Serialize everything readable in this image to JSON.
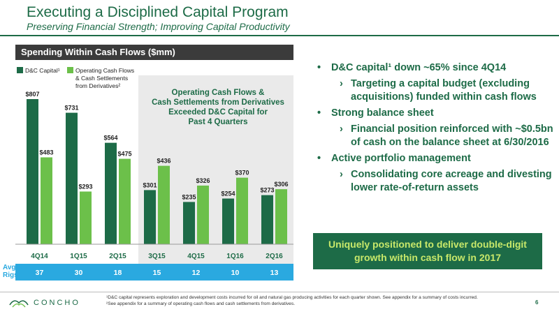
{
  "header": {
    "title": "Executing a Disciplined Capital Program",
    "subtitle": "Preserving Financial Strength; Improving Capital Productivity"
  },
  "panel": {
    "title": "Spending Within Cash Flows ($mm)",
    "legend": {
      "series1": "D&C Capital¹",
      "series2_line1": "Operating Cash Flows",
      "series2_line2": "& Cash Settlements",
      "series2_line3": "from Derivatives²"
    },
    "annotation": [
      "Operating Cash Flows &",
      "Cash Settlements from Derivatives",
      "Exceeded D&C Capital for",
      "Past 4 Quarters"
    ],
    "rigs_label_line1": "Avg. HZ",
    "rigs_label_line2": "Rigs",
    "rigs": [
      "37",
      "30",
      "18",
      "15",
      "12",
      "10",
      "13"
    ]
  },
  "chart_data": {
    "type": "bar",
    "title": "Spending Within Cash Flows ($mm)",
    "categories": [
      "4Q14",
      "1Q15",
      "2Q15",
      "3Q15",
      "4Q15",
      "1Q16",
      "2Q16"
    ],
    "series": [
      {
        "name": "D&C Capital¹",
        "values": [
          807,
          731,
          564,
          301,
          235,
          254,
          273
        ],
        "color": "#1d6b47"
      },
      {
        "name": "Operating Cash Flows & Cash Settlements from Derivatives²",
        "values": [
          483,
          293,
          475,
          436,
          326,
          370,
          306
        ],
        "color": "#6cc04a"
      }
    ],
    "labels": [
      [
        "$807",
        "$731",
        "$564",
        "$301",
        "$235",
        "$254",
        "$273"
      ],
      [
        "$483",
        "$293",
        "$475",
        "$436",
        "$326",
        "$370",
        "$306"
      ]
    ],
    "ylim": [
      0,
      850
    ],
    "shaded_categories": [
      "3Q15",
      "4Q15",
      "1Q16",
      "2Q16"
    ]
  },
  "bullets": {
    "b1": "D&C capital¹ down ~65% since 4Q14",
    "b1a": "Targeting a capital budget (excluding acquisitions) funded within cash flows",
    "b2": "Strong balance sheet",
    "b2a": "Financial position reinforced with ~$0.5bn of cash on the balance sheet at 6/30/2016",
    "b3": "Active portfolio management",
    "b3a": "Consolidating core acreage and divesting lower rate-of-return assets"
  },
  "callout": "Uniquely positioned to deliver double-digit growth within cash flow in 2017",
  "footer": {
    "logo_text": "CONCHO",
    "note1": "¹D&C capital represents exploration and development costs incurred for oil and natural gas producing activities for each quarter shown. See appendix for a summary of costs incurred.",
    "note2": "²See appendix for a summary of operating cash flows and cash settlements from derivatives.",
    "page": "6"
  },
  "colors": {
    "brand_green": "#1d6b47",
    "light_green": "#6cc04a",
    "rigs_blue": "#2aa9e0",
    "shade_gray": "#eaeaea",
    "callout_text": "#c8e86a"
  }
}
